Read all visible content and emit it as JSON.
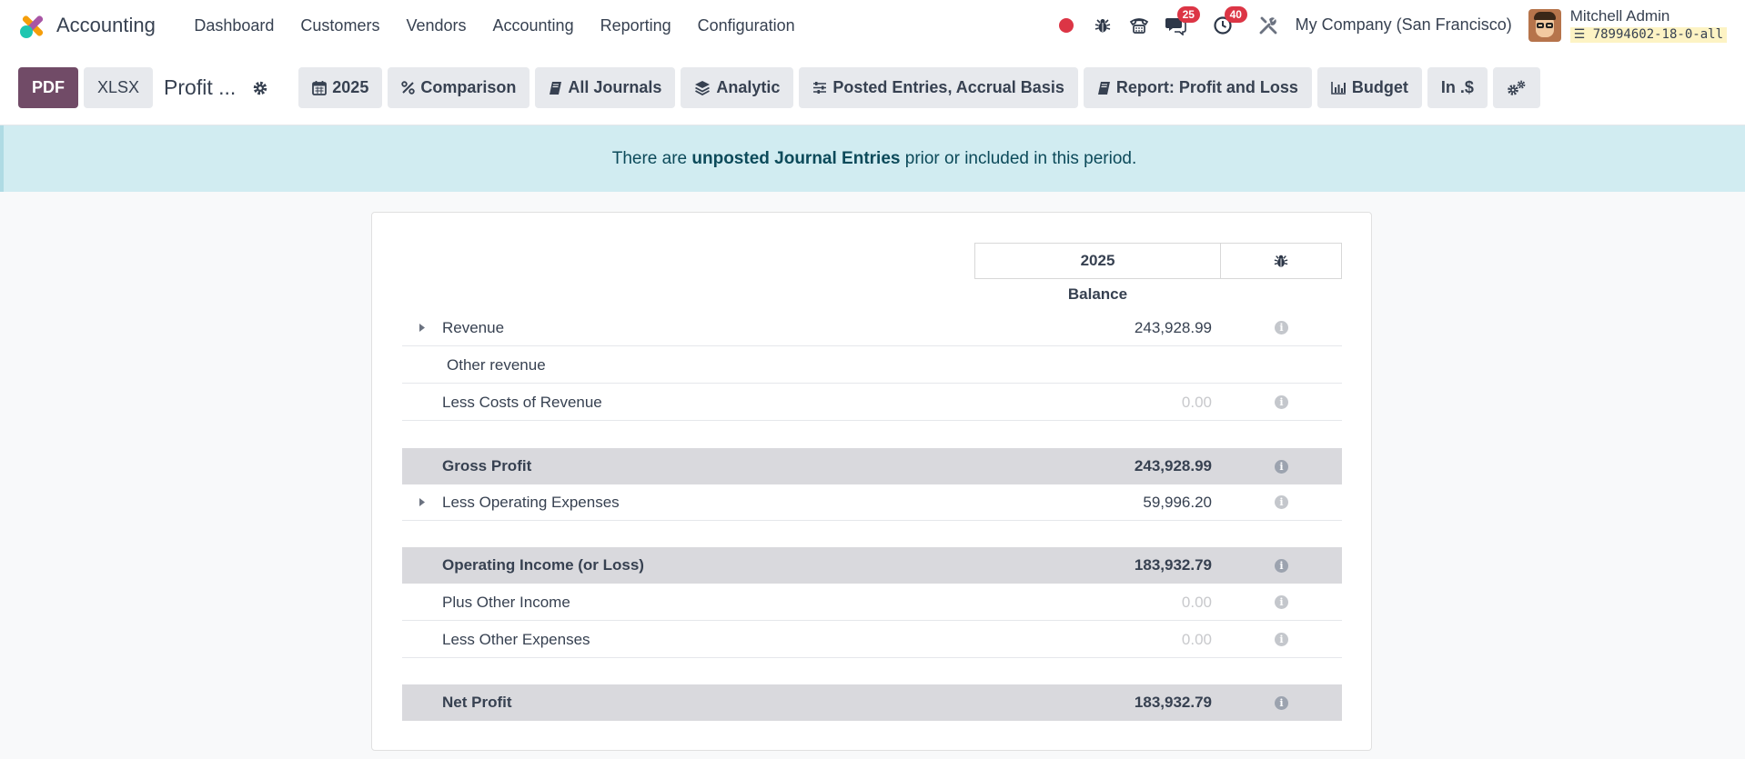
{
  "app": {
    "name": "Accounting"
  },
  "nav": {
    "items": [
      "Dashboard",
      "Customers",
      "Vendors",
      "Accounting",
      "Reporting",
      "Configuration"
    ]
  },
  "systray": {
    "messages_count": "25",
    "activities_count": "40",
    "company": "My Company (San Francisco)",
    "user_name": "Mitchell Admin",
    "db_name": "78994602-18-0-all"
  },
  "control": {
    "pdf_label": "PDF",
    "xlsx_label": "XLSX",
    "title": "Profit ...",
    "filters": {
      "year": "2025",
      "comparison": "Comparison",
      "journals": "All Journals",
      "analytic": "Analytic",
      "entries": "Posted Entries, Accrual Basis",
      "report": "Report: Profit and Loss",
      "budget": "Budget",
      "currency": "In .$"
    }
  },
  "alert": {
    "prefix": "There are ",
    "bold": "unposted Journal Entries",
    "suffix": " prior or included in this period."
  },
  "report": {
    "column_year": "2025",
    "column_balance": "Balance",
    "rows": [
      {
        "label": "Revenue",
        "amount": "243,928.99"
      },
      {
        "label": "Other revenue",
        "amount": ""
      },
      {
        "label": "Less Costs of Revenue",
        "amount": "0.00"
      },
      {
        "label": "Gross Profit",
        "amount": "243,928.99"
      },
      {
        "label": "Less Operating Expenses",
        "amount": "59,996.20"
      },
      {
        "label": "Operating Income (or Loss)",
        "amount": "183,932.79"
      },
      {
        "label": "Plus Other Income",
        "amount": "0.00"
      },
      {
        "label": "Less Other Expenses",
        "amount": "0.00"
      },
      {
        "label": "Net Profit",
        "amount": "183,932.79"
      }
    ]
  },
  "colors": {
    "primary": "#714b67",
    "alert_bg": "#d1ecf1",
    "badge": "#dc3545",
    "total_row_bg": "#d9d9dd"
  }
}
